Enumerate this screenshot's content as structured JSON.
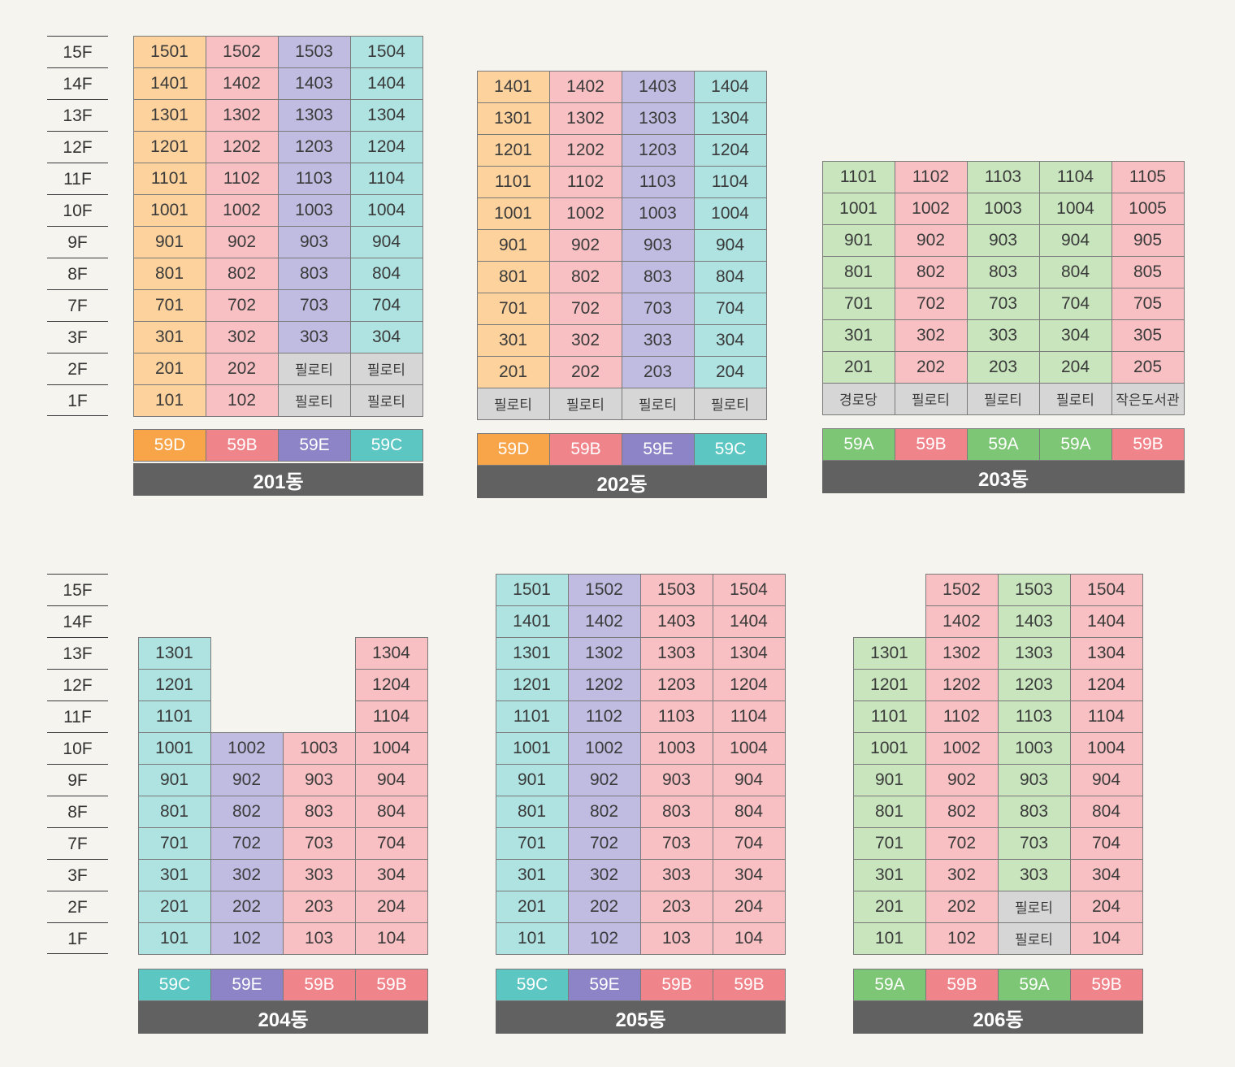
{
  "floor_labels": {
    "top": [
      "15F",
      "14F",
      "13F",
      "12F",
      "11F",
      "10F",
      "9F",
      "8F",
      "7F",
      "3F",
      "2F",
      "1F"
    ],
    "bottom": [
      "15F",
      "14F",
      "13F",
      "12F",
      "11F",
      "10F",
      "9F",
      "8F",
      "7F",
      "3F",
      "2F",
      "1F"
    ]
  },
  "colors": {
    "cell": {
      "o": "#fdd29c",
      "p": "#f8c0c3",
      "v": "#c0bbe0",
      "c": "#aee3e1",
      "g": "#c8e5bd",
      "n": "#d6d6d6"
    },
    "type": {
      "59A": "#7cc675",
      "59B": "#f0848b",
      "59C": "#5cc6c2",
      "59D": "#f8a54a",
      "59E": "#8c84c6"
    },
    "bar": "#616161",
    "background": "#f5f4ee"
  },
  "buildings": [
    {
      "name": "201동",
      "units": [
        [
          "1501",
          "1502",
          "1503",
          "1504"
        ],
        [
          "1401",
          "1402",
          "1403",
          "1404"
        ],
        [
          "1301",
          "1302",
          "1303",
          "1304"
        ],
        [
          "1201",
          "1202",
          "1203",
          "1204"
        ],
        [
          "1101",
          "1102",
          "1103",
          "1104"
        ],
        [
          "1001",
          "1002",
          "1003",
          "1004"
        ],
        [
          "901",
          "902",
          "903",
          "904"
        ],
        [
          "801",
          "802",
          "803",
          "804"
        ],
        [
          "701",
          "702",
          "703",
          "704"
        ],
        [
          "301",
          "302",
          "303",
          "304"
        ],
        [
          "201",
          "202",
          "필로티",
          "필로티"
        ],
        [
          "101",
          "102",
          "필로티",
          "필로티"
        ]
      ],
      "column_colors": [
        "o",
        "p",
        "v",
        "c"
      ],
      "unit_types": [
        "59D",
        "59B",
        "59E",
        "59C"
      ]
    },
    {
      "name": "202동",
      "units": [
        [
          "1401",
          "1402",
          "1403",
          "1404"
        ],
        [
          "1301",
          "1302",
          "1303",
          "1304"
        ],
        [
          "1201",
          "1202",
          "1203",
          "1204"
        ],
        [
          "1101",
          "1102",
          "1103",
          "1104"
        ],
        [
          "1001",
          "1002",
          "1003",
          "1004"
        ],
        [
          "901",
          "902",
          "903",
          "904"
        ],
        [
          "801",
          "802",
          "803",
          "804"
        ],
        [
          "701",
          "702",
          "703",
          "704"
        ],
        [
          "301",
          "302",
          "303",
          "304"
        ],
        [
          "201",
          "202",
          "203",
          "204"
        ],
        [
          "필로티",
          "필로티",
          "필로티",
          "필로티"
        ]
      ],
      "column_colors": [
        "o",
        "p",
        "v",
        "c"
      ],
      "unit_types": [
        "59D",
        "59B",
        "59E",
        "59C"
      ]
    },
    {
      "name": "203동",
      "units": [
        [
          "1101",
          "1102",
          "1103",
          "1104",
          "1105"
        ],
        [
          "1001",
          "1002",
          "1003",
          "1004",
          "1005"
        ],
        [
          "901",
          "902",
          "903",
          "904",
          "905"
        ],
        [
          "801",
          "802",
          "803",
          "804",
          "805"
        ],
        [
          "701",
          "702",
          "703",
          "704",
          "705"
        ],
        [
          "301",
          "302",
          "303",
          "304",
          "305"
        ],
        [
          "201",
          "202",
          "203",
          "204",
          "205"
        ],
        [
          "경로당",
          "필로티",
          "필로티",
          "필로티",
          "작은도서관"
        ]
      ],
      "column_colors": [
        "g",
        "p",
        "g",
        "g",
        "p"
      ],
      "unit_types": [
        "59A",
        "59B",
        "59A",
        "59A",
        "59B"
      ]
    },
    {
      "name": "204동",
      "units": [
        [
          "",
          "",
          "",
          ""
        ],
        [
          "",
          "",
          "",
          ""
        ],
        [
          "1301",
          "",
          "",
          "1304"
        ],
        [
          "1201",
          "",
          "",
          "1204"
        ],
        [
          "1101",
          "",
          "",
          "1104"
        ],
        [
          "1001",
          "1002",
          "1003",
          "1004"
        ],
        [
          "901",
          "902",
          "903",
          "904"
        ],
        [
          "801",
          "802",
          "803",
          "804"
        ],
        [
          "701",
          "702",
          "703",
          "704"
        ],
        [
          "301",
          "302",
          "303",
          "304"
        ],
        [
          "201",
          "202",
          "203",
          "204"
        ],
        [
          "101",
          "102",
          "103",
          "104"
        ]
      ],
      "column_colors": [
        "c",
        "v",
        "p",
        "p"
      ],
      "unit_types": [
        "59C",
        "59E",
        "59B",
        "59B"
      ]
    },
    {
      "name": "205동",
      "units": [
        [
          "1501",
          "1502",
          "1503",
          "1504"
        ],
        [
          "1401",
          "1402",
          "1403",
          "1404"
        ],
        [
          "1301",
          "1302",
          "1303",
          "1304"
        ],
        [
          "1201",
          "1202",
          "1203",
          "1204"
        ],
        [
          "1101",
          "1102",
          "1103",
          "1104"
        ],
        [
          "1001",
          "1002",
          "1003",
          "1004"
        ],
        [
          "901",
          "902",
          "903",
          "904"
        ],
        [
          "801",
          "802",
          "803",
          "804"
        ],
        [
          "701",
          "702",
          "703",
          "704"
        ],
        [
          "301",
          "302",
          "303",
          "304"
        ],
        [
          "201",
          "202",
          "203",
          "204"
        ],
        [
          "101",
          "102",
          "103",
          "104"
        ]
      ],
      "column_colors": [
        "c",
        "v",
        "p",
        "p"
      ],
      "unit_types": [
        "59C",
        "59E",
        "59B",
        "59B"
      ]
    },
    {
      "name": "206동",
      "units": [
        [
          "",
          "1502",
          "1503",
          "1504"
        ],
        [
          "",
          "1402",
          "1403",
          "1404"
        ],
        [
          "1301",
          "1302",
          "1303",
          "1304"
        ],
        [
          "1201",
          "1202",
          "1203",
          "1204"
        ],
        [
          "1101",
          "1102",
          "1103",
          "1104"
        ],
        [
          "1001",
          "1002",
          "1003",
          "1004"
        ],
        [
          "901",
          "902",
          "903",
          "904"
        ],
        [
          "801",
          "802",
          "803",
          "804"
        ],
        [
          "701",
          "702",
          "703",
          "704"
        ],
        [
          "301",
          "302",
          "303",
          "304"
        ],
        [
          "201",
          "202",
          "필로티",
          "204"
        ],
        [
          "101",
          "102",
          "필로티",
          "104"
        ]
      ],
      "column_colors": [
        "g",
        "p",
        "g",
        "p"
      ],
      "unit_types": [
        "59A",
        "59B",
        "59A",
        "59B"
      ]
    }
  ]
}
